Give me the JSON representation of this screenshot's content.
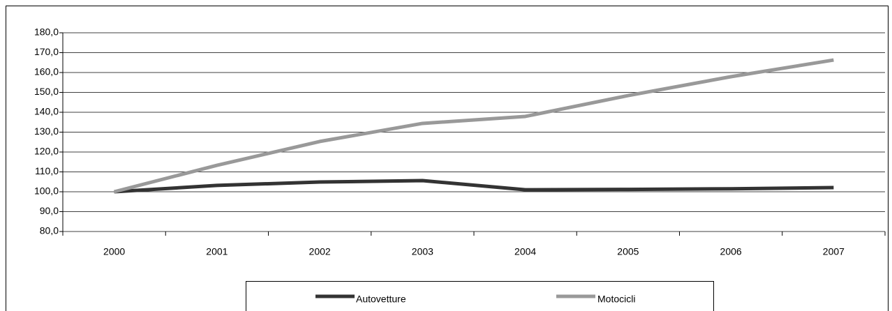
{
  "chart_data": {
    "type": "line",
    "categories": [
      "2000",
      "2001",
      "2002",
      "2003",
      "2004",
      "2005",
      "2006",
      "2007"
    ],
    "series": [
      {
        "name": "Autovetture",
        "color": "#333333",
        "values": [
          100,
          103.2,
          104.9,
          105.6,
          101.0,
          101.2,
          101.5,
          102.1
        ]
      },
      {
        "name": "Motocicli",
        "color": "#999999",
        "values": [
          100,
          113.3,
          125.3,
          134.4,
          137.9,
          148.4,
          157.9,
          166.3
        ]
      }
    ],
    "ylim": [
      80,
      180
    ],
    "yticks": [
      {
        "value": 80,
        "label": "80,0"
      },
      {
        "value": 90,
        "label": "90,0"
      },
      {
        "value": 100,
        "label": "100,0"
      },
      {
        "value": 110,
        "label": "110,0"
      },
      {
        "value": 120,
        "label": "120,0"
      },
      {
        "value": 130,
        "label": "130,0"
      },
      {
        "value": 140,
        "label": "140,0"
      },
      {
        "value": 150,
        "label": "150,0"
      },
      {
        "value": 160,
        "label": "160,0"
      },
      {
        "value": 170,
        "label": "170,0"
      },
      {
        "value": 180,
        "label": "180,0"
      }
    ],
    "grid": true,
    "legend": "bottom"
  }
}
